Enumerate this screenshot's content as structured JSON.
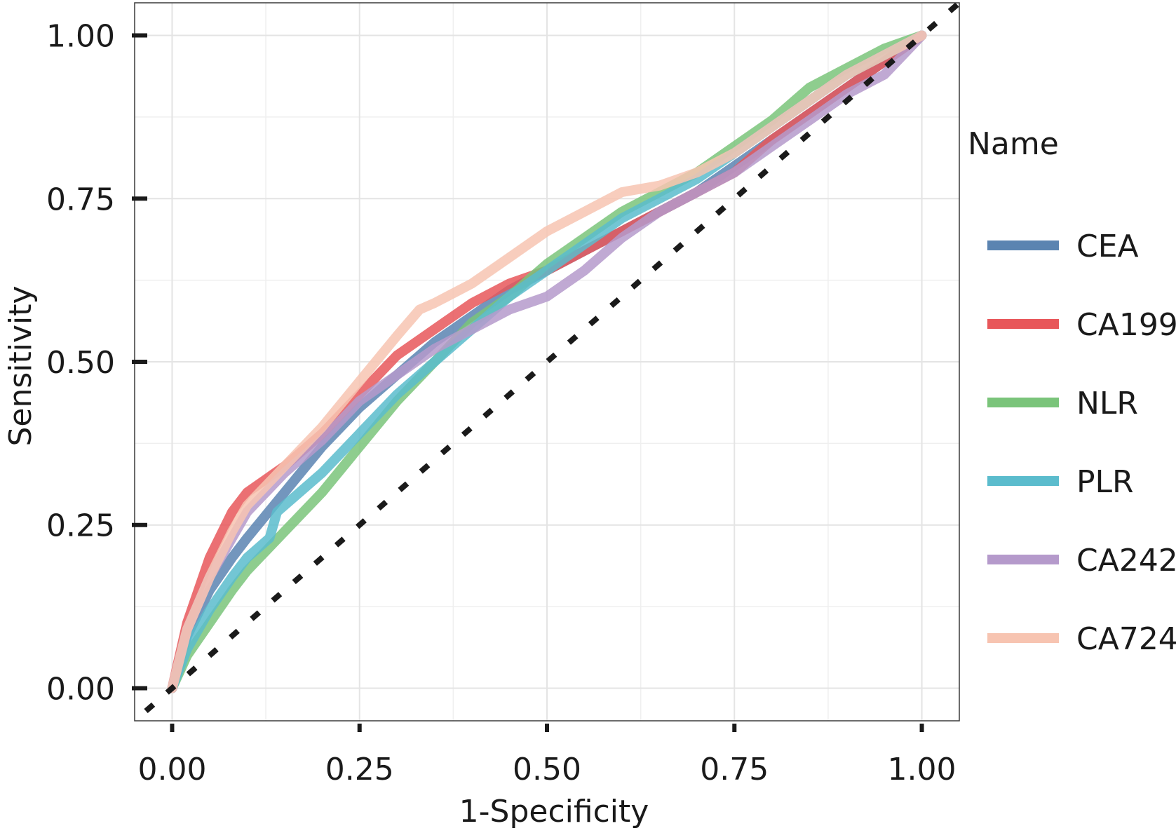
{
  "chart_data": {
    "type": "line",
    "xlabel": "1-Specificity",
    "ylabel": "Sensitivity",
    "xlim": [
      -0.05,
      1.05
    ],
    "ylim": [
      -0.05,
      1.05
    ],
    "x_ticks": [
      0.0,
      0.25,
      0.5,
      0.75,
      1.0
    ],
    "y_ticks": [
      0.0,
      0.25,
      0.5,
      0.75,
      1.0
    ],
    "x_tick_labels": [
      "0.00",
      "0.25",
      "0.50",
      "0.75",
      "1.00"
    ],
    "y_tick_labels": [
      "0.00",
      "0.25",
      "0.50",
      "0.75",
      "1.00"
    ],
    "grid": true,
    "legend": {
      "title": "Name",
      "position": "right"
    },
    "reference_line": {
      "style": "dashed",
      "color": "#1a1a1a",
      "x": [
        0,
        1
      ],
      "y": [
        0,
        1
      ]
    },
    "series": [
      {
        "name": "CEA",
        "color": "#5b84b1",
        "x": [
          0,
          0.02,
          0.05,
          0.08,
          0.1,
          0.15,
          0.2,
          0.25,
          0.3,
          0.35,
          0.4,
          0.45,
          0.5,
          0.55,
          0.6,
          0.65,
          0.7,
          0.75,
          0.8,
          0.85,
          0.9,
          0.95,
          1.0
        ],
        "y": [
          0,
          0.08,
          0.15,
          0.2,
          0.23,
          0.3,
          0.37,
          0.43,
          0.48,
          0.53,
          0.57,
          0.61,
          0.64,
          0.67,
          0.7,
          0.73,
          0.76,
          0.8,
          0.84,
          0.88,
          0.92,
          0.96,
          1.0
        ]
      },
      {
        "name": "CA199",
        "color": "#e8575a",
        "x": [
          0,
          0.02,
          0.05,
          0.08,
          0.1,
          0.15,
          0.2,
          0.25,
          0.3,
          0.35,
          0.4,
          0.45,
          0.5,
          0.55,
          0.6,
          0.65,
          0.7,
          0.75,
          0.8,
          0.85,
          0.9,
          0.95,
          1.0
        ],
        "y": [
          0,
          0.1,
          0.2,
          0.27,
          0.3,
          0.34,
          0.39,
          0.45,
          0.51,
          0.55,
          0.59,
          0.62,
          0.64,
          0.67,
          0.7,
          0.73,
          0.76,
          0.79,
          0.84,
          0.88,
          0.92,
          0.96,
          1.0
        ]
      },
      {
        "name": "NLR",
        "color": "#7ac47a",
        "x": [
          0,
          0.02,
          0.05,
          0.08,
          0.1,
          0.15,
          0.2,
          0.25,
          0.3,
          0.35,
          0.4,
          0.45,
          0.5,
          0.55,
          0.6,
          0.65,
          0.7,
          0.75,
          0.8,
          0.85,
          0.9,
          0.95,
          1.0
        ],
        "y": [
          0,
          0.05,
          0.1,
          0.15,
          0.18,
          0.24,
          0.3,
          0.37,
          0.44,
          0.5,
          0.56,
          0.6,
          0.65,
          0.69,
          0.73,
          0.76,
          0.79,
          0.83,
          0.87,
          0.92,
          0.95,
          0.98,
          1.0
        ]
      },
      {
        "name": "PLR",
        "color": "#5bbccd",
        "x": [
          0,
          0.02,
          0.05,
          0.08,
          0.1,
          0.13,
          0.14,
          0.2,
          0.25,
          0.3,
          0.35,
          0.4,
          0.45,
          0.5,
          0.55,
          0.6,
          0.65,
          0.7,
          0.75,
          0.8,
          0.85,
          0.9,
          0.95,
          1.0
        ],
        "y": [
          0,
          0.06,
          0.12,
          0.17,
          0.2,
          0.23,
          0.27,
          0.33,
          0.39,
          0.45,
          0.5,
          0.55,
          0.6,
          0.64,
          0.68,
          0.72,
          0.75,
          0.78,
          0.82,
          0.86,
          0.9,
          0.94,
          0.97,
          1.0
        ]
      },
      {
        "name": "CA242",
        "color": "#b59acb",
        "x": [
          0,
          0.02,
          0.05,
          0.08,
          0.1,
          0.15,
          0.2,
          0.25,
          0.3,
          0.35,
          0.4,
          0.45,
          0.5,
          0.55,
          0.6,
          0.65,
          0.7,
          0.75,
          0.8,
          0.85,
          0.9,
          0.95,
          1.0
        ],
        "y": [
          0,
          0.09,
          0.17,
          0.23,
          0.27,
          0.33,
          0.38,
          0.44,
          0.48,
          0.52,
          0.55,
          0.58,
          0.6,
          0.64,
          0.69,
          0.73,
          0.76,
          0.79,
          0.83,
          0.87,
          0.91,
          0.94,
          1.0
        ]
      },
      {
        "name": "CA724",
        "color": "#f7c4b1",
        "x": [
          0,
          0.02,
          0.05,
          0.08,
          0.1,
          0.15,
          0.2,
          0.25,
          0.3,
          0.33,
          0.35,
          0.4,
          0.45,
          0.5,
          0.55,
          0.6,
          0.65,
          0.7,
          0.75,
          0.8,
          0.85,
          0.9,
          0.95,
          1.0
        ],
        "y": [
          0,
          0.09,
          0.17,
          0.24,
          0.28,
          0.34,
          0.4,
          0.47,
          0.54,
          0.58,
          0.59,
          0.62,
          0.66,
          0.7,
          0.73,
          0.76,
          0.77,
          0.79,
          0.82,
          0.86,
          0.9,
          0.94,
          0.97,
          1.0
        ]
      }
    ]
  }
}
